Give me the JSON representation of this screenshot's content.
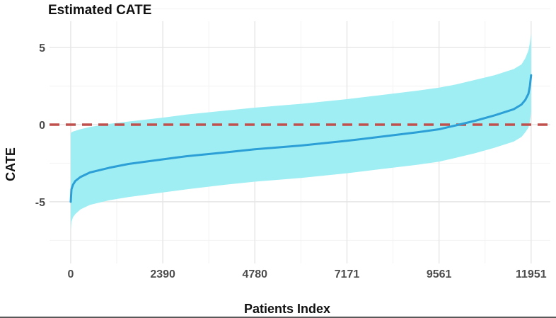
{
  "chart_data": {
    "type": "line",
    "title": "Estimated CATE",
    "xlabel": "Patients Index",
    "ylabel": "CATE",
    "x_ticks": [
      0,
      2390,
      4780,
      7171,
      9561,
      11951
    ],
    "y_ticks": [
      -5,
      0,
      5
    ],
    "xlim": [
      -550,
      12450
    ],
    "ylim": [
      -9,
      6.7
    ],
    "grid": true,
    "reference_line": {
      "y": 0,
      "style": "dashed",
      "color": "#c0504d"
    },
    "series": [
      {
        "x": [
          0,
          20,
          60,
          120,
          250,
          500,
          1000,
          1500,
          2390,
          3000,
          4000,
          4780,
          6000,
          7171,
          8000,
          9000,
          9561,
          10000,
          10500,
          11000,
          11500,
          11700,
          11800,
          11880,
          11920,
          11951
        ],
        "y": [
          -5.0,
          -4.2,
          -3.9,
          -3.65,
          -3.4,
          -3.1,
          -2.8,
          -2.55,
          -2.25,
          -2.05,
          -1.8,
          -1.6,
          -1.35,
          -1.05,
          -0.8,
          -0.5,
          -0.3,
          -0.05,
          0.25,
          0.6,
          1.0,
          1.3,
          1.6,
          2.0,
          2.5,
          3.2
        ],
        "color": "#2b9fd6",
        "ci_lower": [
          -6.8,
          -6.3,
          -6.0,
          -5.8,
          -5.5,
          -5.2,
          -4.9,
          -4.7,
          -4.4,
          -4.2,
          -3.9,
          -3.7,
          -3.45,
          -3.15,
          -2.9,
          -2.6,
          -2.4,
          -2.15,
          -1.85,
          -1.5,
          -1.1,
          -0.8,
          -0.5,
          -0.2,
          0.2,
          0.8
        ],
        "ci_upper": [
          -0.6,
          -0.5,
          -0.45,
          -0.4,
          -0.3,
          -0.15,
          0.05,
          0.2,
          0.45,
          0.65,
          0.9,
          1.1,
          1.35,
          1.65,
          1.9,
          2.2,
          2.4,
          2.6,
          2.9,
          3.2,
          3.6,
          3.9,
          4.3,
          4.8,
          5.3,
          5.9
        ],
        "ci_color": "#9eeef3"
      }
    ]
  }
}
